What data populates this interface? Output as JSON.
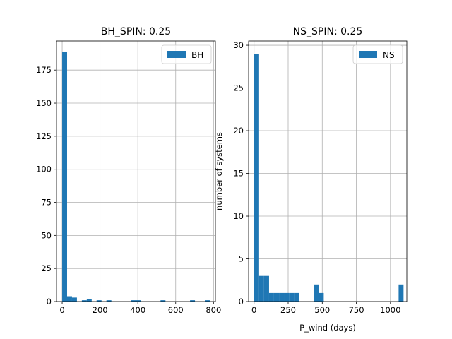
{
  "colors": {
    "bar": "#1f77b4",
    "grid": "#b0b0b0",
    "axis": "#000000"
  },
  "chart_data": [
    {
      "type": "bar",
      "title": "BH_SPIN: 0.25",
      "xlabel": "",
      "ylabel": "",
      "legend": {
        "label": "BH",
        "placement": "top-right"
      },
      "grid": true,
      "xlim": [
        -30,
        810
      ],
      "ylim": [
        0,
        197
      ],
      "xticks": [
        0,
        200,
        400,
        600,
        800
      ],
      "yticks": [
        0,
        25,
        50,
        75,
        100,
        125,
        150,
        175
      ],
      "bins": [
        [
          0,
          26,
          189
        ],
        [
          26,
          52,
          4
        ],
        [
          52,
          78,
          3
        ],
        [
          104,
          130,
          1
        ],
        [
          130,
          156,
          2
        ],
        [
          182,
          208,
          1
        ],
        [
          234,
          260,
          1
        ],
        [
          364,
          390,
          1
        ],
        [
          390,
          416,
          1
        ],
        [
          520,
          546,
          1
        ],
        [
          676,
          702,
          1
        ],
        [
          754,
          780,
          1
        ]
      ]
    },
    {
      "type": "bar",
      "title": "NS_SPIN: 0.25",
      "xlabel": "P_wind (days)",
      "ylabel": "number of systems",
      "legend": {
        "label": "NS",
        "placement": "top-right"
      },
      "grid": true,
      "xlim": [
        -40,
        1120
      ],
      "ylim": [
        0,
        30.5
      ],
      "xticks": [
        0,
        250,
        500,
        750,
        1000
      ],
      "yticks": [
        0,
        5,
        10,
        15,
        20,
        25,
        30
      ],
      "bins": [
        [
          0,
          37,
          29
        ],
        [
          37,
          73,
          3
        ],
        [
          73,
          110,
          3
        ],
        [
          110,
          146,
          1
        ],
        [
          146,
          183,
          1
        ],
        [
          183,
          219,
          1
        ],
        [
          219,
          256,
          1
        ],
        [
          256,
          292,
          1
        ],
        [
          292,
          329,
          1
        ],
        [
          438,
          475,
          2
        ],
        [
          475,
          511,
          1
        ],
        [
          1060,
          1096,
          2
        ]
      ]
    }
  ]
}
